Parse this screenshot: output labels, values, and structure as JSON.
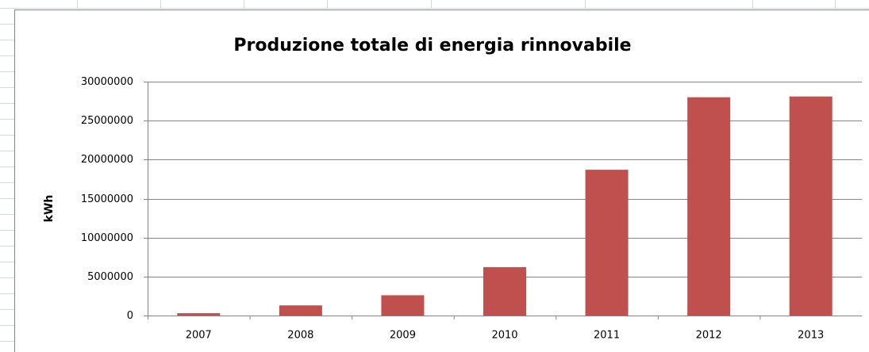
{
  "chart_data": {
    "type": "bar",
    "title": "Produzione totale di energia rinnovabile",
    "y_label": "kWh",
    "categories": [
      "2007",
      "2008",
      "2009",
      "2010",
      "2011",
      "2012",
      "2013"
    ],
    "values": [
      300000,
      1300000,
      2600000,
      6200000,
      18700000,
      28000000,
      28100000
    ],
    "color": "#c0504d",
    "ylim": [
      0,
      30000000
    ],
    "yticks": [
      0,
      5000000,
      10000000,
      15000000,
      20000000,
      25000000,
      30000000
    ],
    "grid": true
  }
}
